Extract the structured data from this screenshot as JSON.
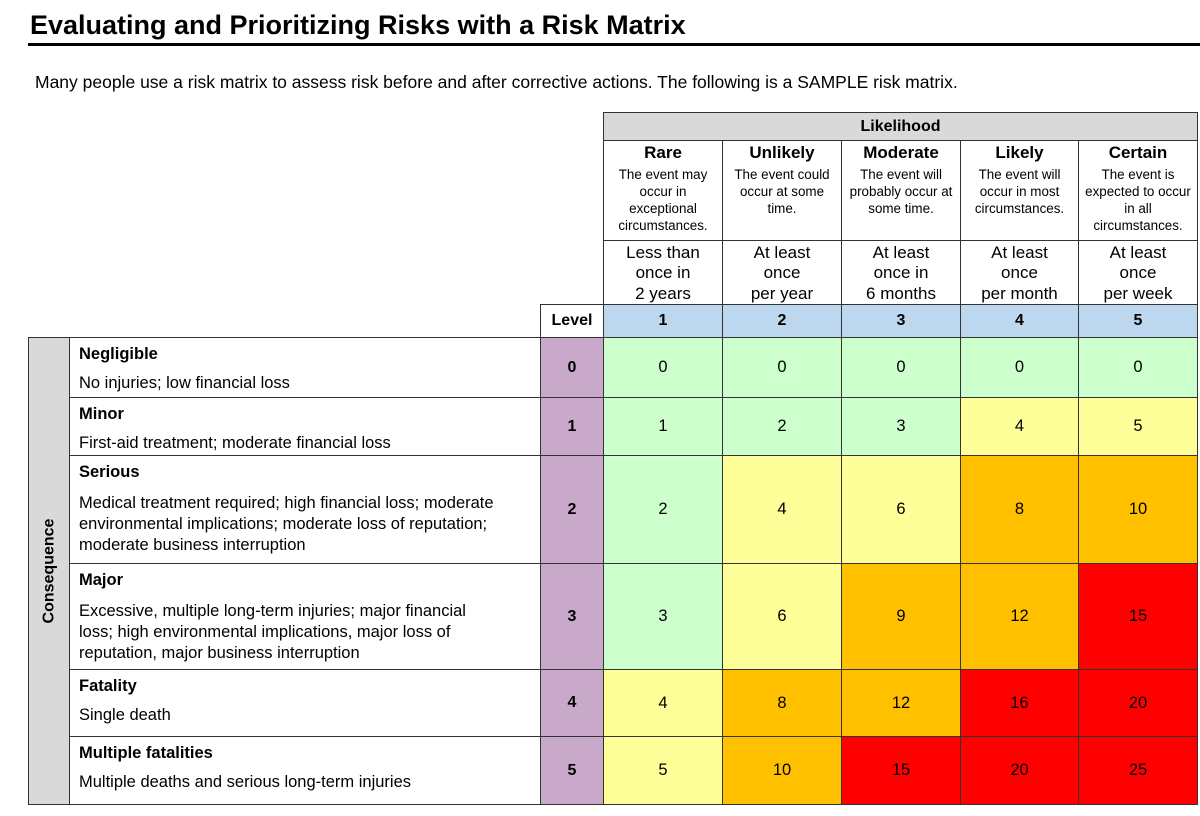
{
  "title": "Evaluating and Prioritizing Risks with a Risk Matrix",
  "intro": "Many people use a risk matrix to assess risk before and after corrective actions. The following is a SAMPLE risk matrix.",
  "likelihood_label": "Likelihood",
  "level_label": "Level",
  "consequence_label": "Consequence",
  "likelihood": [
    {
      "name": "Rare",
      "desc": "The event may occur in exceptional circumstances.",
      "freq": [
        "Less than",
        "once in",
        "2 years"
      ],
      "level": "1"
    },
    {
      "name": "Unlikely",
      "desc": "The event could occur at some time.",
      "freq": [
        "At least",
        "once",
        "per year"
      ],
      "level": "2"
    },
    {
      "name": "Moderate",
      "desc": "The event will probably occur at some time.",
      "freq": [
        "At least",
        "once in",
        "6 months"
      ],
      "level": "3"
    },
    {
      "name": "Likely",
      "desc": "The event will occur in most circumstances.",
      "freq": [
        "At least",
        "once",
        "per month"
      ],
      "level": "4"
    },
    {
      "name": "Certain",
      "desc": "The event is expected to occur in all circumstances.",
      "freq": [
        "At least",
        "once",
        "per week"
      ],
      "level": "5"
    }
  ],
  "consequences": [
    {
      "name": "Negligible",
      "desc": "No injuries; low financial loss",
      "level": "0",
      "values": [
        "0",
        "0",
        "0",
        "0",
        "0"
      ]
    },
    {
      "name": "Minor",
      "desc": "First-aid treatment; moderate financial loss",
      "level": "1",
      "values": [
        "1",
        "2",
        "3",
        "4",
        "5"
      ]
    },
    {
      "name": "Serious",
      "desc": "Medical treatment required; high financial loss; moderate environmental implications; moderate loss of reputation; moderate business interruption",
      "level": "2",
      "values": [
        "2",
        "4",
        "6",
        "8",
        "10"
      ]
    },
    {
      "name": "Major",
      "desc": "Excessive, multiple long-term injuries; major financial loss; high environmental implications, major loss of reputation, major business interruption",
      "level": "3",
      "values": [
        "3",
        "6",
        "9",
        "12",
        "15"
      ]
    },
    {
      "name": "Fatality",
      "desc": "Single death",
      "level": "4",
      "values": [
        "4",
        "8",
        "12",
        "16",
        "20"
      ]
    },
    {
      "name": "Multiple fatalities",
      "desc": "Multiple deaths and serious long-term injuries",
      "level": "5",
      "values": [
        "5",
        "10",
        "15",
        "20",
        "25"
      ]
    }
  ],
  "colors": {
    "green": "#ccffcc",
    "yellow": "#ffff99",
    "orange": "#ffc000",
    "red": "#ff0000",
    "header_gray": "#d9d9d9",
    "level_blue": "#bdd7ee",
    "level_purple": "#c9a9c9"
  },
  "cell_colors": [
    [
      "green",
      "green",
      "green",
      "green",
      "green"
    ],
    [
      "green",
      "green",
      "green",
      "yellow",
      "yellow"
    ],
    [
      "green",
      "yellow",
      "yellow",
      "orange",
      "orange"
    ],
    [
      "green",
      "yellow",
      "orange",
      "orange",
      "red"
    ],
    [
      "yellow",
      "orange",
      "orange",
      "red",
      "red"
    ],
    [
      "yellow",
      "orange",
      "red",
      "red",
      "red"
    ]
  ]
}
